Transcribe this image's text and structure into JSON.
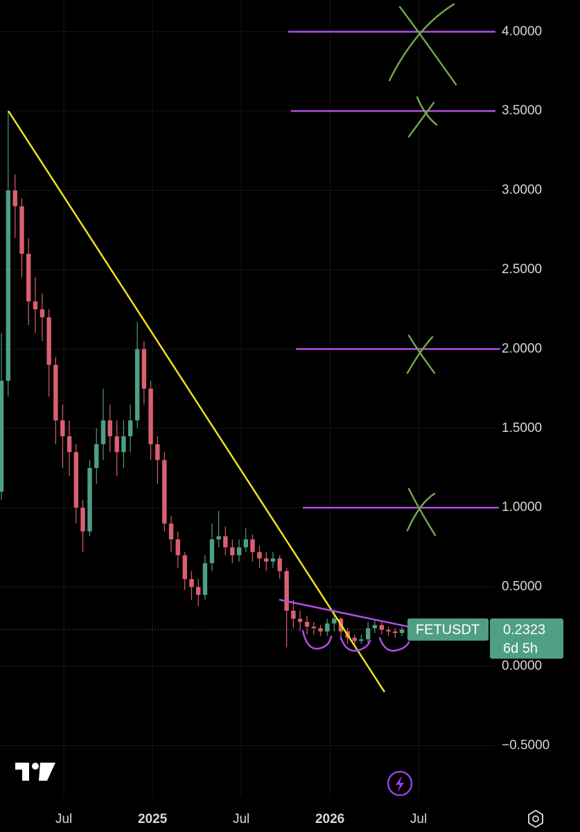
{
  "chart_data": {
    "type": "candlestick",
    "symbol": "FETUSDT",
    "countdown": "6d 5h",
    "up_color": "#4f9e86",
    "down_color": "#d9606f",
    "x": [
      2024.148,
      2024.186,
      2024.225,
      2024.263,
      2024.301,
      2024.339,
      2024.378,
      2024.416,
      2024.454,
      2024.493,
      2024.531,
      2024.569,
      2024.607,
      2024.646,
      2024.684,
      2024.722,
      2024.76,
      2024.799,
      2024.837,
      2024.875,
      2024.914,
      2024.952,
      2024.99,
      2025.028,
      2025.067,
      2025.105,
      2025.143,
      2025.182,
      2025.22,
      2025.258,
      2025.296,
      2025.335,
      2025.373,
      2025.411,
      2025.45,
      2025.488,
      2025.526,
      2025.564,
      2025.603,
      2025.641,
      2025.679,
      2025.717,
      2025.756,
      2025.794,
      2025.832,
      2025.871,
      2025.909,
      2025.947,
      2025.985,
      2026.024,
      2026.062,
      2026.1,
      2026.139,
      2026.177,
      2026.215,
      2026.253,
      2026.292,
      2026.33,
      2026.368,
      2026.406
    ],
    "open": [
      1.1,
      1.8,
      3.0,
      2.9,
      2.6,
      2.3,
      2.25,
      2.2,
      1.9,
      1.55,
      1.45,
      1.35,
      1.0,
      0.85,
      1.25,
      1.4,
      1.55,
      1.45,
      1.35,
      1.45,
      1.55,
      2.0,
      1.75,
      1.4,
      1.3,
      0.9,
      0.8,
      0.7,
      0.55,
      0.5,
      0.45,
      0.65,
      0.8,
      0.82,
      0.75,
      0.7,
      0.75,
      0.8,
      0.72,
      0.68,
      0.66,
      0.68,
      0.6,
      0.35,
      0.3,
      0.28,
      0.25,
      0.24,
      0.22,
      0.27,
      0.3,
      0.22,
      0.18,
      0.16,
      0.17,
      0.24,
      0.26,
      0.23,
      0.22,
      0.21
    ],
    "high": [
      2.1,
      3.5,
      3.1,
      2.95,
      2.7,
      2.45,
      2.35,
      2.25,
      1.95,
      1.65,
      1.55,
      1.4,
      1.05,
      1.3,
      1.5,
      1.75,
      1.65,
      1.55,
      1.55,
      1.65,
      2.17,
      2.05,
      1.8,
      1.45,
      1.35,
      0.95,
      0.85,
      0.72,
      0.6,
      0.55,
      0.7,
      0.9,
      0.98,
      0.88,
      0.8,
      0.8,
      0.87,
      0.83,
      0.76,
      0.72,
      0.72,
      0.7,
      0.62,
      0.42,
      0.35,
      0.32,
      0.28,
      0.26,
      0.3,
      0.36,
      0.31,
      0.24,
      0.2,
      0.2,
      0.28,
      0.29,
      0.28,
      0.25,
      0.24,
      0.25
    ],
    "low": [
      1.05,
      1.7,
      2.7,
      2.45,
      2.15,
      2.1,
      2.05,
      1.7,
      1.4,
      1.25,
      1.2,
      0.9,
      0.72,
      0.82,
      1.15,
      1.3,
      1.35,
      1.2,
      1.25,
      1.35,
      1.5,
      1.65,
      1.3,
      1.15,
      0.85,
      0.72,
      0.62,
      0.48,
      0.42,
      0.38,
      0.42,
      0.6,
      0.75,
      0.7,
      0.65,
      0.66,
      0.72,
      0.66,
      0.62,
      0.6,
      0.62,
      0.55,
      0.12,
      0.24,
      0.22,
      0.2,
      0.2,
      0.19,
      0.19,
      0.22,
      0.18,
      0.14,
      0.13,
      0.14,
      0.15,
      0.21,
      0.2,
      0.19,
      0.18,
      0.19
    ],
    "close": [
      1.8,
      3.0,
      2.9,
      2.6,
      2.3,
      2.25,
      2.2,
      1.9,
      1.55,
      1.45,
      1.35,
      1.0,
      0.85,
      1.25,
      1.4,
      1.55,
      1.45,
      1.35,
      1.45,
      1.55,
      2.0,
      1.75,
      1.4,
      1.3,
      0.9,
      0.8,
      0.7,
      0.55,
      0.5,
      0.45,
      0.65,
      0.8,
      0.82,
      0.75,
      0.7,
      0.75,
      0.8,
      0.72,
      0.68,
      0.66,
      0.68,
      0.6,
      0.35,
      0.3,
      0.28,
      0.25,
      0.24,
      0.22,
      0.27,
      0.3,
      0.22,
      0.18,
      0.16,
      0.17,
      0.24,
      0.26,
      0.23,
      0.22,
      0.21,
      0.2323
    ],
    "drawings": [
      {
        "color": "#f2e21c",
        "x": [
          2024.187,
          2026.308
        ],
        "y": [
          3.501,
          -0.162
        ]
      },
      {
        "color": "#b44ee8",
        "x": [
          2025.714,
          2026.613
        ],
        "y": [
          0.42,
          0.21
        ]
      },
      {
        "color": "#b44ee8",
        "x": [
          2025.765,
          2026.933
        ],
        "y": [
          4.0,
          4.0
        ]
      },
      {
        "color": "#b44ee8",
        "x": [
          2025.78,
          2026.933
        ],
        "y": [
          3.5,
          3.5
        ]
      },
      {
        "color": "#b44ee8",
        "x": [
          2025.808,
          2026.96
        ],
        "y": [
          2.0,
          2.0
        ]
      },
      {
        "color": "#b44ee8",
        "x": [
          2025.847,
          2026.952
        ],
        "y": [
          1.0,
          1.0
        ]
      }
    ],
    "xlim": [
      2024.14,
      2027.41
    ],
    "ylim": [
      -0.826,
      4.2
    ],
    "xticks": [
      {
        "value": 2024.5,
        "label": "Jul"
      },
      {
        "value": 2025,
        "label": "2025"
      },
      {
        "value": 2025.5,
        "label": "Jul"
      },
      {
        "value": 2026,
        "label": "2026"
      },
      {
        "value": 2026.5,
        "label": "Jul"
      }
    ],
    "yticks": [
      {
        "value": -0.5,
        "label": "−0.5000"
      },
      {
        "value": 0,
        "label": "0.0000"
      },
      {
        "value": 0.5,
        "label": "0.5000"
      },
      {
        "value": 1,
        "label": "1.0000"
      },
      {
        "value": 1.5,
        "label": "1.5000"
      },
      {
        "value": 2,
        "label": "2.0000"
      },
      {
        "value": 2.5,
        "label": "2.5000"
      },
      {
        "value": 3,
        "label": "3.0000"
      },
      {
        "value": 3.5,
        "label": "3.5000"
      },
      {
        "value": 4,
        "label": "4.0000"
      }
    ],
    "grid": true
  }
}
